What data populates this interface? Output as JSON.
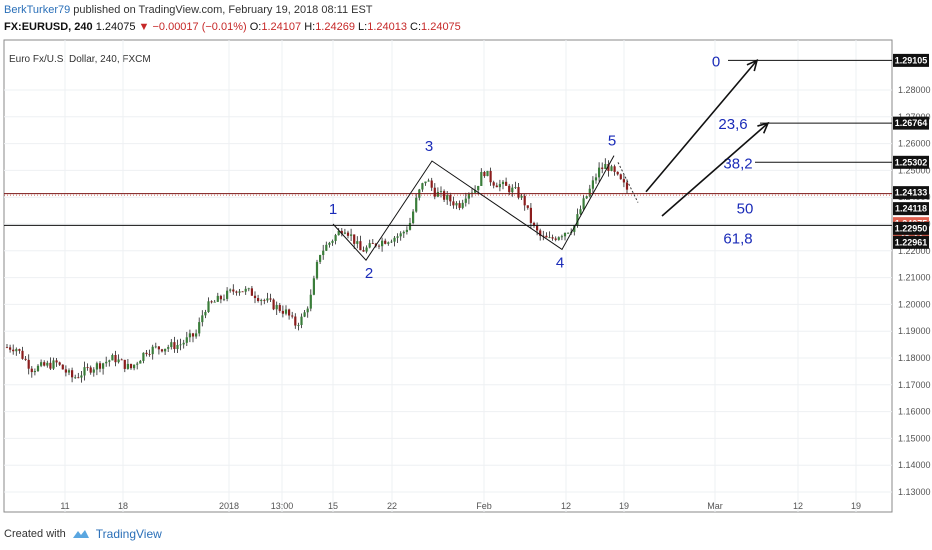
{
  "header": {
    "author": "BerkTurker79",
    "published_text": "published on TradingView.com, February 19, 2018 08:11 EST",
    "symbol_line": "FX:EURUSD, 240",
    "last": "1.24075",
    "change": "▼ −0.00017 (−0.01%)",
    "o_label": "O:",
    "o": "1.24107",
    "h_label": "H:",
    "h": "1.24269",
    "l_label": "L:",
    "l": "1.24013",
    "c_label": "C:",
    "c": "1.24075"
  },
  "footer": {
    "created_with": "Created with",
    "brand": "TradingView"
  },
  "chart_data": {
    "type": "candlestick",
    "title": "Euro Fx/U.S. Dollar, 240, FXCM",
    "symbol": "FX:EURUSD",
    "interval": "240",
    "ylim": [
      1.13,
      1.29
    ],
    "y_ticks": [
      "1.28000",
      "1.27000",
      "1.26000",
      "1.25000",
      "1.24000",
      "1.23000",
      "1.22000",
      "1.21000",
      "1.20000",
      "1.19000",
      "1.18000",
      "1.17000",
      "1.16000",
      "1.15000",
      "1.14000",
      "1.13000"
    ],
    "x_ticks": [
      "11",
      "18",
      "2018",
      "13:00",
      "15",
      "22",
      "Feb",
      "12",
      "19",
      "Mar",
      "12",
      "19"
    ],
    "price_tags": [
      {
        "value": "1.29105",
        "style": "dark"
      },
      {
        "value": "1.26764",
        "style": "dark"
      },
      {
        "value": "1.25302",
        "style": "dark"
      },
      {
        "value": "1.24133",
        "style": "dark"
      },
      {
        "value": "1.24118",
        "style": "dark"
      },
      {
        "value": "1.24075",
        "style": "red"
      },
      {
        "value": "48:44",
        "style": "red"
      },
      {
        "value": "1.22950",
        "style": "dark"
      },
      {
        "value": "1.22961",
        "style": "dark"
      }
    ],
    "horizontal_levels": [
      1.29105,
      1.26764,
      1.25302,
      1.24133,
      1.2295
    ],
    "fib_labels": [
      "0",
      "23,6",
      "38,2",
      "50",
      "61,8"
    ],
    "wave_labels": [
      "1",
      "2",
      "3",
      "4",
      "5"
    ],
    "wave_points": [
      {
        "label": "1",
        "x": "Jan 15",
        "y": 1.23
      },
      {
        "label": "2",
        "x": "Jan 18",
        "y": 1.2165
      },
      {
        "label": "3",
        "x": "Jan 25",
        "y": 1.2535
      },
      {
        "label": "4",
        "x": "Feb 9",
        "y": 1.2205
      },
      {
        "label": "5",
        "x": "Feb 16",
        "y": 1.2555
      }
    ],
    "price_path": [
      {
        "x": "Dec 6",
        "y": 1.184
      },
      {
        "x": "Dec 8",
        "y": 1.176
      },
      {
        "x": "Dec 11",
        "y": 1.178
      },
      {
        "x": "Dec 13",
        "y": 1.1725
      },
      {
        "x": "Dec 15",
        "y": 1.176
      },
      {
        "x": "Dec 18",
        "y": 1.18
      },
      {
        "x": "Dec 20",
        "y": 1.176
      },
      {
        "x": "Dec 22",
        "y": 1.183
      },
      {
        "x": "Dec 26",
        "y": 1.185
      },
      {
        "x": "Dec 28",
        "y": 1.189
      },
      {
        "x": "Dec 29",
        "y": 1.1985
      },
      {
        "x": "Jan 2",
        "y": 1.206
      },
      {
        "x": "Jan 4",
        "y": 1.204
      },
      {
        "x": "Jan 5",
        "y": 1.202
      },
      {
        "x": "Jan 8",
        "y": 1.197
      },
      {
        "x": "Jan 9",
        "y": 1.1925
      },
      {
        "x": "Jan 10",
        "y": 1.195
      },
      {
        "x": "Jan 11",
        "y": 1.203
      },
      {
        "x": "Jan 12",
        "y": 1.219
      },
      {
        "x": "Jan 15",
        "y": 1.229
      },
      {
        "x": "Jan 16",
        "y": 1.225
      },
      {
        "x": "Jan 17",
        "y": 1.22
      },
      {
        "x": "Jan 18",
        "y": 1.221
      },
      {
        "x": "Jan 19",
        "y": 1.223
      },
      {
        "x": "Jan 22",
        "y": 1.226
      },
      {
        "x": "Jan 23",
        "y": 1.23
      },
      {
        "x": "Jan 24",
        "y": 1.241
      },
      {
        "x": "Jan 25",
        "y": 1.247
      },
      {
        "x": "Jan 26",
        "y": 1.242
      },
      {
        "x": "Jan 29",
        "y": 1.237
      },
      {
        "x": "Jan 30",
        "y": 1.242
      },
      {
        "x": "Jan 31",
        "y": 1.243
      },
      {
        "x": "Feb 1",
        "y": 1.25
      },
      {
        "x": "Feb 2",
        "y": 1.246
      },
      {
        "x": "Feb 5",
        "y": 1.242
      },
      {
        "x": "Feb 6",
        "y": 1.238
      },
      {
        "x": "Feb 7",
        "y": 1.229
      },
      {
        "x": "Feb 8",
        "y": 1.225
      },
      {
        "x": "Feb 9",
        "y": 1.224
      },
      {
        "x": "Feb 12",
        "y": 1.229
      },
      {
        "x": "Feb 13",
        "y": 1.237
      },
      {
        "x": "Feb 14",
        "y": 1.243
      },
      {
        "x": "Feb 15",
        "y": 1.25
      },
      {
        "x": "Feb 16",
        "y": 1.252
      },
      {
        "x": "Feb 19",
        "y": 1.241
      }
    ]
  }
}
